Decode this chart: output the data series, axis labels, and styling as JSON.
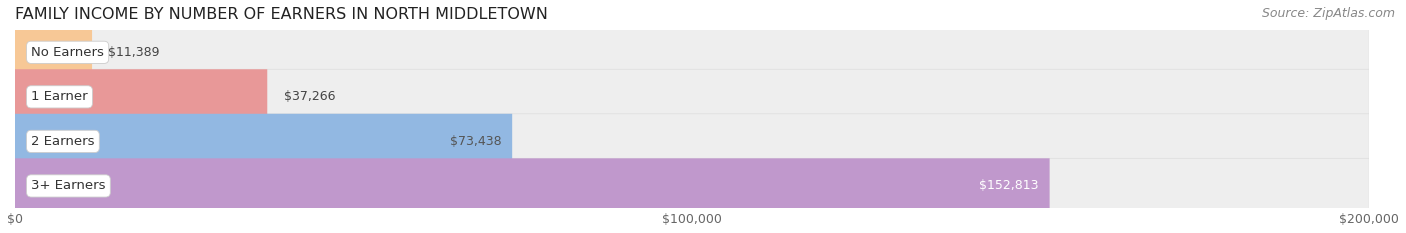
{
  "title": "FAMILY INCOME BY NUMBER OF EARNERS IN NORTH MIDDLETOWN",
  "source": "Source: ZipAtlas.com",
  "categories": [
    "No Earners",
    "1 Earner",
    "2 Earners",
    "3+ Earners"
  ],
  "values": [
    11389,
    37266,
    73438,
    152813
  ],
  "bar_colors": [
    "#f7c896",
    "#e89898",
    "#92b8e2",
    "#c098cc"
  ],
  "label_bg_colors": [
    "#e8a860",
    "#d07070",
    "#6090c8",
    "#9860b0"
  ],
  "label_colors": [
    "#555555",
    "#555555",
    "#555555",
    "#ffffff"
  ],
  "xlim_max": 200000,
  "bg_color": "#ffffff",
  "bar_bg_color": "#eeeeee",
  "bar_bg_border": "#dddddd",
  "title_fontsize": 11.5,
  "source_fontsize": 9,
  "tick_fontsize": 9,
  "value_fontsize": 9,
  "cat_fontsize": 9.5
}
